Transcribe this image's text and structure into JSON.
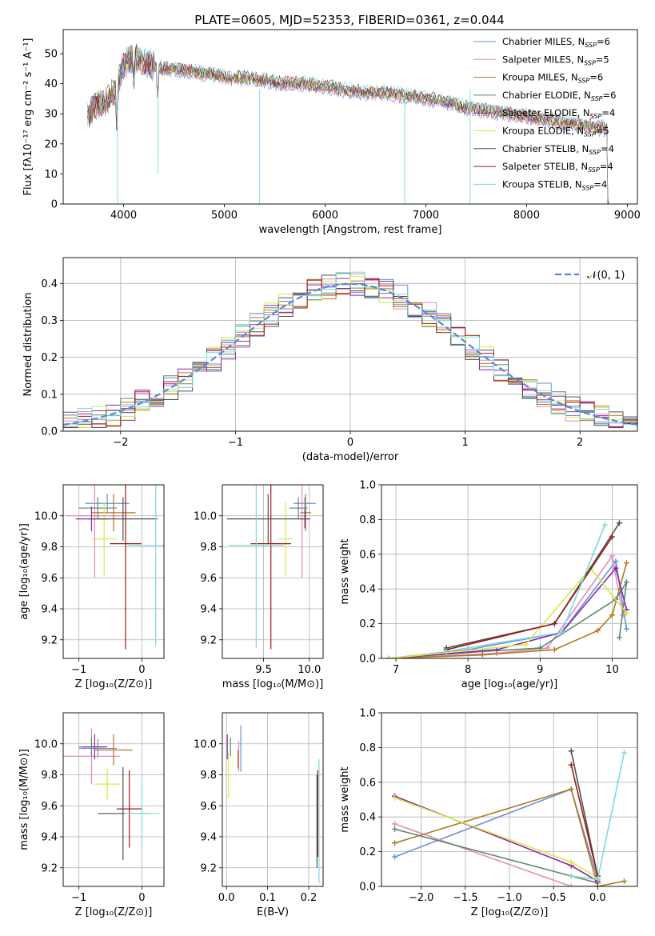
{
  "title": "PLATE=0605, MJD=52353, FIBERID=0361, z=0.044",
  "colors": {
    "Chabrier MILES": "#6a8fd8",
    "Salpeter MILES": "#e38ac0",
    "Kroupa MILES": "#b07a20",
    "Chabrier ELODIE": "#5a8a6a",
    "Salpeter ELODIE": "#8a2aa8",
    "Kroupa ELODIE": "#d8e845",
    "Chabrier STELIB": "#505050",
    "Salpeter STELIB": "#a01818",
    "Kroupa STELIB": "#80d8e0",
    "normal": "#5b86d6"
  },
  "chart_data": [
    {
      "id": "spectrum",
      "type": "line",
      "title": "PLATE=0605, MJD=52353, FIBERID=0361, z=0.044",
      "xlabel": "wavelength [Angstrom, rest frame]",
      "ylabel": "Flux [fλ10⁻¹⁷ erg cm⁻² s⁻¹ A⁻¹]",
      "xlim": [
        3400,
        9100
      ],
      "ylim": [
        0,
        58
      ],
      "xticks": [
        4000,
        5000,
        6000,
        7000,
        8000,
        9000
      ],
      "yticks": [
        0,
        10,
        20,
        30,
        40,
        50
      ],
      "legend_position": "top-right",
      "series": [
        {
          "label": "Chabrier MILES, N",
          "sub": "SSP",
          "suffix": "=6"
        },
        {
          "label": "Salpeter MILES, N",
          "sub": "SSP",
          "suffix": "=5"
        },
        {
          "label": "Kroupa MILES, N",
          "sub": "SSP",
          "suffix": "=6"
        },
        {
          "label": "Chabrier ELODIE, N",
          "sub": "SSP",
          "suffix": "=6"
        },
        {
          "label": "Salpeter ELODIE, N",
          "sub": "SSP",
          "suffix": "=4"
        },
        {
          "label": "Kroupa ELODIE, N",
          "sub": "SSP",
          "suffix": "=5"
        },
        {
          "label": "Chabrier STELIB, N",
          "sub": "SSP",
          "suffix": "=4"
        },
        {
          "label": "Salpeter STELIB, N",
          "sub": "SSP",
          "suffix": "=4"
        },
        {
          "label": "Kroupa STELIB, N",
          "sub": "SSP",
          "suffix": "=4"
        }
      ],
      "spectrum_points": [
        [
          3650,
          30
        ],
        [
          3700,
          32
        ],
        [
          3800,
          34
        ],
        [
          3900,
          37
        ],
        [
          3950,
          40
        ],
        [
          4000,
          46
        ],
        [
          4100,
          49
        ],
        [
          4200,
          47
        ],
        [
          4300,
          46
        ],
        [
          4400,
          45
        ],
        [
          4500,
          45
        ],
        [
          4700,
          44
        ],
        [
          4900,
          43
        ],
        [
          5000,
          42
        ],
        [
          5200,
          42
        ],
        [
          5400,
          41
        ],
        [
          5600,
          40
        ],
        [
          5800,
          40
        ],
        [
          6000,
          39
        ],
        [
          6200,
          38
        ],
        [
          6400,
          37
        ],
        [
          6600,
          37
        ],
        [
          6800,
          36
        ],
        [
          7000,
          35
        ],
        [
          7200,
          34
        ],
        [
          7400,
          32
        ],
        [
          7600,
          31
        ],
        [
          7800,
          30
        ],
        [
          8000,
          29
        ],
        [
          8200,
          28
        ],
        [
          8400,
          27
        ],
        [
          8600,
          26
        ],
        [
          8800,
          25
        ]
      ]
    },
    {
      "id": "residuals",
      "type": "histogram",
      "xlabel": "(data-model)/error",
      "ylabel": "Normed distribution",
      "xlim": [
        -2.5,
        2.5
      ],
      "ylim": [
        0,
        0.47
      ],
      "xticks": [
        -2,
        -1,
        0,
        1,
        2
      ],
      "yticks": [
        0.0,
        0.1,
        0.2,
        0.3,
        0.4
      ],
      "legend": "𝒩(0, 1)",
      "legend_position": "top-right",
      "normal_curve": {
        "mean": 0,
        "sigma": 1
      }
    },
    {
      "id": "age-vs-Z",
      "type": "errorbar",
      "xlabel": "Z [log₁₀(Z/Z⊙)]",
      "ylabel": "age  [log₁₀(age/yr)]",
      "xlim": [
        -1.25,
        0.35
      ],
      "ylim": [
        9.08,
        10.2
      ],
      "xticks": [
        -1,
        0
      ],
      "yticks": [
        9.2,
        9.4,
        9.6,
        9.8,
        10.0
      ],
      "points": [
        {
          "model": "Chabrier MILES",
          "x": -0.55,
          "xerr": 0.35,
          "y": 10.08,
          "yerr": 0.06
        },
        {
          "model": "Salpeter MILES",
          "x": -0.75,
          "xerr": 0.45,
          "y": 10.0,
          "yerr": 0.4
        },
        {
          "model": "Kroupa MILES",
          "x": -0.45,
          "xerr": 0.35,
          "y": 10.02,
          "yerr": 0.12
        },
        {
          "model": "Chabrier ELODIE",
          "x": -0.7,
          "xerr": 0.3,
          "y": 10.05,
          "yerr": 0.07
        },
        {
          "model": "Salpeter ELODIE",
          "x": -0.8,
          "xerr": 0.25,
          "y": 9.98,
          "yerr": 0.08
        },
        {
          "model": "Kroupa ELODIE",
          "x": -0.6,
          "xerr": 0.2,
          "y": 9.85,
          "yerr": 0.24
        },
        {
          "model": "Chabrier STELIB",
          "x": -0.3,
          "xerr": 0.55,
          "y": 9.98,
          "yerr": 0.14
        },
        {
          "model": "Salpeter STELIB",
          "x": -0.26,
          "xerr": 0.25,
          "y": 9.82,
          "yerr": 0.68
        },
        {
          "model": "Kroupa STELIB",
          "x": 0.22,
          "xerr": 0.45,
          "y": 9.81,
          "yerr": 0.65
        }
      ]
    },
    {
      "id": "age-vs-mass",
      "type": "errorbar",
      "xlabel": "mass [log₁₀(M/M⊙)]",
      "ylabel": "",
      "xlim": [
        9.05,
        10.15
      ],
      "ylim": [
        9.08,
        10.2
      ],
      "xticks": [
        9.5,
        10.0
      ],
      "yticks": [
        9.2,
        9.4,
        9.6,
        9.8,
        10.0
      ],
      "points": [
        {
          "model": "Chabrier MILES",
          "x": 9.95,
          "xerr": 0.12,
          "y": 10.08,
          "yerr": 0.04
        },
        {
          "model": "Salpeter MILES",
          "x": 9.92,
          "xerr": 0.05,
          "y": 10.0,
          "yerr": 0.4
        },
        {
          "model": "Kroupa MILES",
          "x": 9.96,
          "xerr": 0.06,
          "y": 10.02,
          "yerr": 0.12
        },
        {
          "model": "Chabrier ELODIE",
          "x": 9.88,
          "xerr": 0.1,
          "y": 10.05,
          "yerr": 0.07
        },
        {
          "model": "Salpeter ELODIE",
          "x": 9.95,
          "xerr": 0.06,
          "y": 9.98,
          "yerr": 0.06
        },
        {
          "model": "Kroupa ELODIE",
          "x": 9.74,
          "xerr": 0.08,
          "y": 9.85,
          "yerr": 0.24
        },
        {
          "model": "Chabrier STELIB",
          "x": 9.55,
          "xerr": 0.45,
          "y": 9.98,
          "yerr": 0.16
        },
        {
          "model": "Salpeter STELIB",
          "x": 9.58,
          "xerr": 0.22,
          "y": 9.82,
          "yerr": 0.68
        },
        {
          "model": "Kroupa STELIB",
          "x": 9.42,
          "xerr": 0.3,
          "y": 9.81,
          "yerr": 0.66
        }
      ]
    },
    {
      "id": "weight-vs-age",
      "type": "line",
      "xlabel": "age  [log₁₀(age/yr)]",
      "ylabel": "mass weight",
      "xlim": [
        6.8,
        10.35
      ],
      "ylim": [
        0,
        1.0
      ],
      "xticks": [
        7,
        8,
        9,
        10
      ],
      "yticks": [
        0.0,
        0.2,
        0.4,
        0.6,
        0.8,
        1.0
      ],
      "series": [
        {
          "model": "Chabrier MILES",
          "points": [
            [
              6.9,
              0
            ],
            [
              8.0,
              0.05
            ],
            [
              9.3,
              0.15
            ],
            [
              10.05,
              0.56
            ],
            [
              10.2,
              0.17
            ]
          ]
        },
        {
          "model": "Salpeter MILES",
          "points": [
            [
              6.9,
              0
            ],
            [
              8.4,
              0.03
            ],
            [
              9.1,
              0.06
            ],
            [
              10.0,
              0.59
            ],
            [
              10.15,
              0.25
            ]
          ]
        },
        {
          "model": "Kroupa MILES",
          "points": [
            [
              6.9,
              0
            ],
            [
              8.2,
              0.02
            ],
            [
              9.2,
              0.05
            ],
            [
              9.8,
              0.16
            ],
            [
              10.0,
              0.25
            ],
            [
              10.2,
              0.55
            ]
          ]
        },
        {
          "model": "Chabrier ELODIE",
          "points": [
            [
              6.9,
              0
            ],
            [
              8.2,
              0.04
            ],
            [
              9.0,
              0.06
            ],
            [
              10.05,
              0.34
            ],
            [
              10.2,
              0.44
            ],
            [
              10.1,
              0.12
            ]
          ]
        },
        {
          "model": "Salpeter ELODIE",
          "points": [
            [
              6.9,
              0
            ],
            [
              8.4,
              0.05
            ],
            [
              9.3,
              0.15
            ],
            [
              10.05,
              0.52
            ],
            [
              10.2,
              0.28
            ]
          ]
        },
        {
          "model": "Kroupa ELODIE",
          "points": [
            [
              6.9,
              0
            ],
            [
              8.8,
              0.08
            ],
            [
              9.7,
              0.52
            ],
            [
              10.2,
              0.26
            ]
          ]
        },
        {
          "model": "Chabrier STELIB",
          "points": [
            [
              7.7,
              0.06
            ],
            [
              9.2,
              0.2
            ],
            [
              10.1,
              0.78
            ]
          ]
        },
        {
          "model": "Salpeter STELIB",
          "points": [
            [
              7.7,
              0.05
            ],
            [
              9.2,
              0.2
            ],
            [
              10.0,
              0.7
            ]
          ]
        },
        {
          "model": "Kroupa STELIB",
          "points": [
            [
              7.7,
              0.04
            ],
            [
              9.3,
              0.15
            ],
            [
              9.9,
              0.77
            ]
          ]
        }
      ]
    },
    {
      "id": "mass-vs-Z",
      "type": "errorbar",
      "xlabel": "Z [log₁₀(Z/Z⊙)]",
      "ylabel": "mass [log₁₀(M/M⊙)]",
      "xlim": [
        -1.25,
        0.35
      ],
      "ylim": [
        9.08,
        10.2
      ],
      "xticks": [
        -1,
        0
      ],
      "yticks": [
        9.2,
        9.4,
        9.6,
        9.8,
        10.0
      ],
      "points": [
        {
          "model": "Chabrier MILES",
          "x": -0.7,
          "xerr": 0.3,
          "y": 9.97,
          "yerr": 0.06
        },
        {
          "model": "Salpeter MILES",
          "x": -0.8,
          "xerr": 0.45,
          "y": 9.92,
          "yerr": 0.18
        },
        {
          "model": "Kroupa MILES",
          "x": -0.45,
          "xerr": 0.3,
          "y": 9.96,
          "yerr": 0.1
        },
        {
          "model": "Chabrier ELODIE",
          "x": -0.8,
          "xerr": 0.2,
          "y": 9.98,
          "yerr": 0.06
        },
        {
          "model": "Salpeter ELODIE",
          "x": -0.75,
          "xerr": 0.2,
          "y": 9.98,
          "yerr": 0.08
        },
        {
          "model": "Kroupa ELODIE",
          "x": -0.55,
          "xerr": 0.2,
          "y": 9.74,
          "yerr": 0.1
        },
        {
          "model": "Chabrier STELIB",
          "x": -0.3,
          "xerr": 0.4,
          "y": 9.55,
          "yerr": 0.3
        },
        {
          "model": "Salpeter STELIB",
          "x": -0.2,
          "xerr": 0.2,
          "y": 9.58,
          "yerr": 0.25
        },
        {
          "model": "Kroupa STELIB",
          "x": 0.0,
          "xerr": 0.28,
          "y": 9.55,
          "yerr": 0.22
        }
      ]
    },
    {
      "id": "mass-vs-EBV",
      "type": "errorbar",
      "xlabel": "E(B-V)",
      "ylabel": "",
      "xlim": [
        -0.01,
        0.235
      ],
      "ylim": [
        9.08,
        10.2
      ],
      "xticks": [
        0.0,
        0.1,
        0.2
      ],
      "yticks": [
        9.2,
        9.4,
        9.6,
        9.8,
        10.0
      ],
      "points": [
        {
          "model": "Chabrier MILES",
          "x": 0.035,
          "xerr": 0,
          "y": 9.97,
          "yerr": 0.15
        },
        {
          "model": "Salpeter MILES",
          "x": 0.03,
          "xerr": 0,
          "y": 9.92,
          "yerr": 0.1
        },
        {
          "model": "Kroupa MILES",
          "x": 0.028,
          "xerr": 0,
          "y": 9.9,
          "yerr": 0.06
        },
        {
          "model": "Chabrier ELODIE",
          "x": 0.01,
          "xerr": 0,
          "y": 9.98,
          "yerr": 0.06
        },
        {
          "model": "Salpeter ELODIE",
          "x": 0.002,
          "xerr": 0,
          "y": 9.98,
          "yerr": 0.08
        },
        {
          "model": "Kroupa ELODIE",
          "x": 0.005,
          "xerr": 0,
          "y": 9.8,
          "yerr": 0.15
        },
        {
          "model": "Chabrier STELIB",
          "x": 0.22,
          "xerr": 0,
          "y": 9.5,
          "yerr": 0.3
        },
        {
          "model": "Salpeter STELIB",
          "x": 0.222,
          "xerr": 0,
          "y": 9.55,
          "yerr": 0.28
        },
        {
          "model": "Kroupa STELIB",
          "x": 0.225,
          "xerr": 0,
          "y": 9.5,
          "yerr": 0.4
        }
      ]
    },
    {
      "id": "weight-vs-Z",
      "type": "line",
      "xlabel": "Z [log₁₀(Z/Z⊙)]",
      "ylabel": "mass weight",
      "xlim": [
        -2.45,
        0.45
      ],
      "ylim": [
        0,
        1.0
      ],
      "xticks": [
        -2.0,
        -1.5,
        -1.0,
        -0.5,
        0.0
      ],
      "yticks": [
        0.0,
        0.2,
        0.4,
        0.6,
        0.8,
        1.0
      ],
      "series": [
        {
          "model": "Chabrier MILES",
          "points": [
            [
              -2.3,
              0.17
            ],
            [
              -0.3,
              0.56
            ],
            [
              0.0,
              0.04
            ]
          ]
        },
        {
          "model": "Salpeter MILES",
          "points": [
            [
              -2.3,
              0.36
            ],
            [
              -0.3,
              0.0
            ],
            [
              0.0,
              0.0
            ]
          ]
        },
        {
          "model": "Kroupa MILES",
          "points": [
            [
              -2.3,
              0.25
            ],
            [
              -0.3,
              0.56
            ],
            [
              0.0,
              0.0
            ],
            [
              0.3,
              0.03
            ]
          ]
        },
        {
          "model": "Chabrier ELODIE",
          "points": [
            [
              -2.3,
              0.33
            ],
            [
              -0.3,
              0.06
            ],
            [
              0.0,
              0.02
            ]
          ]
        },
        {
          "model": "Salpeter ELODIE",
          "points": [
            [
              -2.3,
              0.52
            ],
            [
              -0.3,
              0.12
            ],
            [
              0.0,
              0.03
            ]
          ]
        },
        {
          "model": "Kroupa ELODIE",
          "points": [
            [
              -2.3,
              0.51
            ],
            [
              -0.3,
              0.14
            ],
            [
              0.0,
              0.05
            ]
          ]
        },
        {
          "model": "Chabrier STELIB",
          "points": [
            [
              -0.3,
              0.78
            ],
            [
              0.0,
              0.06
            ]
          ]
        },
        {
          "model": "Salpeter STELIB",
          "points": [
            [
              -0.3,
              0.7
            ],
            [
              0.0,
              0.06
            ]
          ]
        },
        {
          "model": "Kroupa STELIB",
          "points": [
            [
              -0.3,
              0.06
            ],
            [
              0.0,
              0.04
            ],
            [
              0.3,
              0.77
            ]
          ]
        }
      ]
    }
  ]
}
